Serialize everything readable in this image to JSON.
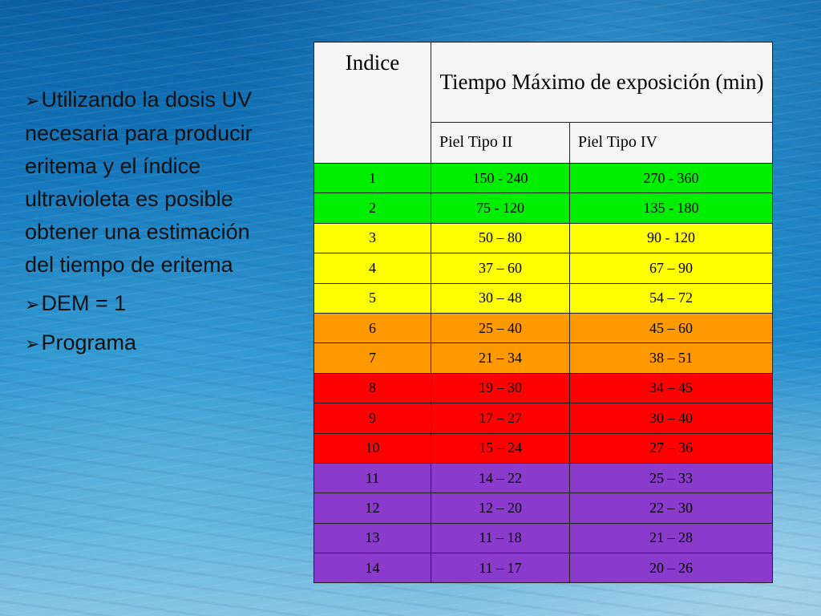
{
  "bullets": [
    {
      "marker": "➢",
      "text": "Utilizando la dosis UV necesaria para producir eritema y el índice ultravioleta es posible obtener una estimación del tiempo de eritema"
    },
    {
      "marker": "➢",
      "text": "DEM = 1"
    },
    {
      "marker": "➢",
      "text": "Programa"
    }
  ],
  "table": {
    "header_index": "Indice",
    "header_time": "Tiempo Máximo de exposición (min)",
    "header_skin2": "Piel  Tipo II",
    "header_skin4": "Piel  Tipo IV",
    "row_colors": {
      "green": "#00ee00",
      "yellow": "#ffff00",
      "orange": "#ff9900",
      "red": "#ff0000",
      "purple": "#8b3bcb"
    },
    "rows": [
      {
        "index": "1",
        "skin2": "150  - 240",
        "skin4": "270 - 360",
        "color": "green"
      },
      {
        "index": "2",
        "skin2": "75  - 120",
        "skin4": "135  - 180",
        "color": "green"
      },
      {
        "index": "3",
        "skin2": "50 – 80",
        "skin4": "90 - 120",
        "color": "yellow"
      },
      {
        "index": "4",
        "skin2": "37 – 60",
        "skin4": "67 – 90",
        "color": "yellow"
      },
      {
        "index": "5",
        "skin2": "30 – 48",
        "skin4": "54 – 72",
        "color": "yellow"
      },
      {
        "index": "6",
        "skin2": "25 – 40",
        "skin4": "45 – 60",
        "color": "orange"
      },
      {
        "index": "7",
        "skin2": "21 – 34",
        "skin4": "38 – 51",
        "color": "orange"
      },
      {
        "index": "8",
        "skin2": "19 – 30",
        "skin4": "34 – 45",
        "color": "red"
      },
      {
        "index": "9",
        "skin2": "17 – 27",
        "skin4": "30 – 40",
        "color": "red"
      },
      {
        "index": "10",
        "skin2": "15 – 24",
        "skin4": "27 – 36",
        "color": "red"
      },
      {
        "index": "11",
        "skin2": "14 – 22",
        "skin4": "25 – 33",
        "color": "purple"
      },
      {
        "index": "12",
        "skin2": "12 – 20",
        "skin4": "22 – 30",
        "color": "purple"
      },
      {
        "index": "13",
        "skin2": "11 – 18",
        "skin4": "21 – 28",
        "color": "purple"
      },
      {
        "index": "14",
        "skin2": "11 – 17",
        "skin4": "20 – 26",
        "color": "purple"
      }
    ]
  }
}
